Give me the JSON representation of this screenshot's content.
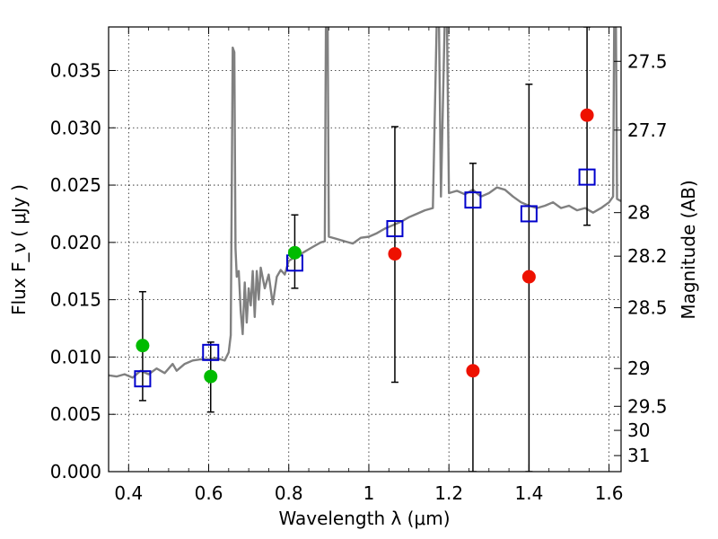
{
  "chart_data": {
    "type": "scatter",
    "xlabel": "Wavelength  λ (μm)",
    "ylabel": "Flux  F_ν  ( μJy )",
    "ylabel_right": "Magnitude (AB)",
    "xlim": [
      0.35,
      1.63
    ],
    "ylim": [
      0.0,
      0.0388
    ],
    "grid": true,
    "x_ticks": [
      {
        "value": 0.4,
        "label": "0.4"
      },
      {
        "value": 0.6,
        "label": "0.6"
      },
      {
        "value": 0.8,
        "label": "0.8"
      },
      {
        "value": 1.0,
        "label": "1"
      },
      {
        "value": 1.2,
        "label": "1.2"
      },
      {
        "value": 1.4,
        "label": "1.4"
      },
      {
        "value": 1.6,
        "label": "1.6"
      }
    ],
    "y_ticks": [
      {
        "value": 0.0,
        "label": "0.000"
      },
      {
        "value": 0.005,
        "label": "0.005"
      },
      {
        "value": 0.01,
        "label": "0.010"
      },
      {
        "value": 0.015,
        "label": "0.015"
      },
      {
        "value": 0.02,
        "label": "0.020"
      },
      {
        "value": 0.025,
        "label": "0.025"
      },
      {
        "value": 0.03,
        "label": "0.030"
      },
      {
        "value": 0.035,
        "label": "0.035"
      }
    ],
    "right_ticks": [
      {
        "label": "27.5",
        "flux": 0.0358
      },
      {
        "label": "27.7",
        "flux": 0.0298
      },
      {
        "label": "28",
        "flux": 0.0226
      },
      {
        "label": "28.2",
        "flux": 0.0188
      },
      {
        "label": "28.5",
        "flux": 0.0143
      },
      {
        "label": "29",
        "flux": 0.009
      },
      {
        "label": "29.5",
        "flux": 0.0057
      },
      {
        "label": "30",
        "flux": 0.0036
      },
      {
        "label": "31",
        "flux": 0.0014
      }
    ],
    "series": [
      {
        "kind": "line",
        "color": "#808080",
        "points": [
          [
            0.35,
            0.0084
          ],
          [
            0.37,
            0.0083
          ],
          [
            0.39,
            0.0085
          ],
          [
            0.41,
            0.0082
          ],
          [
            0.43,
            0.0088
          ],
          [
            0.45,
            0.0085
          ],
          [
            0.47,
            0.009
          ],
          [
            0.49,
            0.0086
          ],
          [
            0.51,
            0.0094
          ],
          [
            0.52,
            0.0088
          ],
          [
            0.54,
            0.0094
          ],
          [
            0.56,
            0.0097
          ],
          [
            0.58,
            0.0098
          ],
          [
            0.6,
            0.0098
          ],
          [
            0.62,
            0.0099
          ],
          [
            0.64,
            0.0097
          ],
          [
            0.65,
            0.0104
          ],
          [
            0.655,
            0.0119
          ],
          [
            0.66,
            0.037
          ],
          [
            0.664,
            0.0366
          ],
          [
            0.667,
            0.0195
          ],
          [
            0.67,
            0.017
          ],
          [
            0.675,
            0.0175
          ],
          [
            0.68,
            0.014
          ],
          [
            0.685,
            0.012
          ],
          [
            0.69,
            0.0165
          ],
          [
            0.695,
            0.013
          ],
          [
            0.7,
            0.016
          ],
          [
            0.705,
            0.0145
          ],
          [
            0.71,
            0.0175
          ],
          [
            0.715,
            0.0135
          ],
          [
            0.72,
            0.0175
          ],
          [
            0.725,
            0.015
          ],
          [
            0.73,
            0.0178
          ],
          [
            0.74,
            0.016
          ],
          [
            0.75,
            0.0172
          ],
          [
            0.76,
            0.0146
          ],
          [
            0.77,
            0.017
          ],
          [
            0.78,
            0.0176
          ],
          [
            0.79,
            0.0172
          ],
          [
            0.8,
            0.0184
          ],
          [
            0.82,
            0.0188
          ],
          [
            0.84,
            0.0192
          ],
          [
            0.86,
            0.0196
          ],
          [
            0.88,
            0.02
          ],
          [
            0.89,
            0.0201
          ],
          [
            0.893,
            0.04
          ],
          [
            0.897,
            0.04
          ],
          [
            0.9,
            0.0205
          ],
          [
            0.92,
            0.0203
          ],
          [
            0.94,
            0.0201
          ],
          [
            0.96,
            0.0199
          ],
          [
            0.98,
            0.0204
          ],
          [
            1.0,
            0.0205
          ],
          [
            1.02,
            0.0208
          ],
          [
            1.04,
            0.0212
          ],
          [
            1.06,
            0.0215
          ],
          [
            1.08,
            0.0218
          ],
          [
            1.1,
            0.0222
          ],
          [
            1.12,
            0.0225
          ],
          [
            1.14,
            0.0228
          ],
          [
            1.16,
            0.023
          ],
          [
            1.17,
            0.04
          ],
          [
            1.175,
            0.04
          ],
          [
            1.18,
            0.024
          ],
          [
            1.19,
            0.04
          ],
          [
            1.195,
            0.04
          ],
          [
            1.2,
            0.0243
          ],
          [
            1.22,
            0.0245
          ],
          [
            1.24,
            0.0242
          ],
          [
            1.26,
            0.0246
          ],
          [
            1.28,
            0.024
          ],
          [
            1.3,
            0.0243
          ],
          [
            1.32,
            0.0248
          ],
          [
            1.34,
            0.0246
          ],
          [
            1.36,
            0.024
          ],
          [
            1.38,
            0.0235
          ],
          [
            1.4,
            0.0232
          ],
          [
            1.42,
            0.023
          ],
          [
            1.44,
            0.0232
          ],
          [
            1.46,
            0.0235
          ],
          [
            1.48,
            0.023
          ],
          [
            1.5,
            0.0232
          ],
          [
            1.52,
            0.0228
          ],
          [
            1.54,
            0.023
          ],
          [
            1.56,
            0.0226
          ],
          [
            1.58,
            0.023
          ],
          [
            1.6,
            0.0235
          ],
          [
            1.61,
            0.024
          ],
          [
            1.613,
            0.04
          ],
          [
            1.617,
            0.04
          ],
          [
            1.62,
            0.0238
          ],
          [
            1.63,
            0.0236
          ]
        ]
      },
      {
        "kind": "errorbar",
        "color": "#000000",
        "points": [
          {
            "x": 0.435,
            "low": 0.0062,
            "high": 0.0157
          },
          {
            "x": 0.605,
            "low": 0.0052,
            "high": 0.0113
          },
          {
            "x": 0.815,
            "low": 0.016,
            "high": 0.0224
          },
          {
            "x": 1.065,
            "low": 0.0078,
            "high": 0.0301
          },
          {
            "x": 1.26,
            "low": 0.0,
            "high": 0.0269
          },
          {
            "x": 1.4,
            "low": 0.0,
            "high": 0.0338
          },
          {
            "x": 1.545,
            "low": 0.0215,
            "high": 0.0388
          }
        ]
      },
      {
        "kind": "square",
        "color": "#0000cc",
        "points": [
          [
            0.435,
            0.0081
          ],
          [
            0.605,
            0.0104
          ],
          [
            0.815,
            0.0182
          ],
          [
            1.065,
            0.0212
          ],
          [
            1.26,
            0.0237
          ],
          [
            1.4,
            0.0225
          ],
          [
            1.545,
            0.0257
          ]
        ]
      },
      {
        "kind": "circle",
        "color": "#00bb00",
        "points": [
          [
            0.435,
            0.011
          ],
          [
            0.605,
            0.0083
          ],
          [
            0.815,
            0.0191
          ]
        ]
      },
      {
        "kind": "circle",
        "color": "#ee1100",
        "points": [
          [
            1.065,
            0.019
          ],
          [
            1.26,
            0.0088
          ],
          [
            1.4,
            0.017
          ],
          [
            1.545,
            0.0311
          ]
        ]
      }
    ]
  }
}
